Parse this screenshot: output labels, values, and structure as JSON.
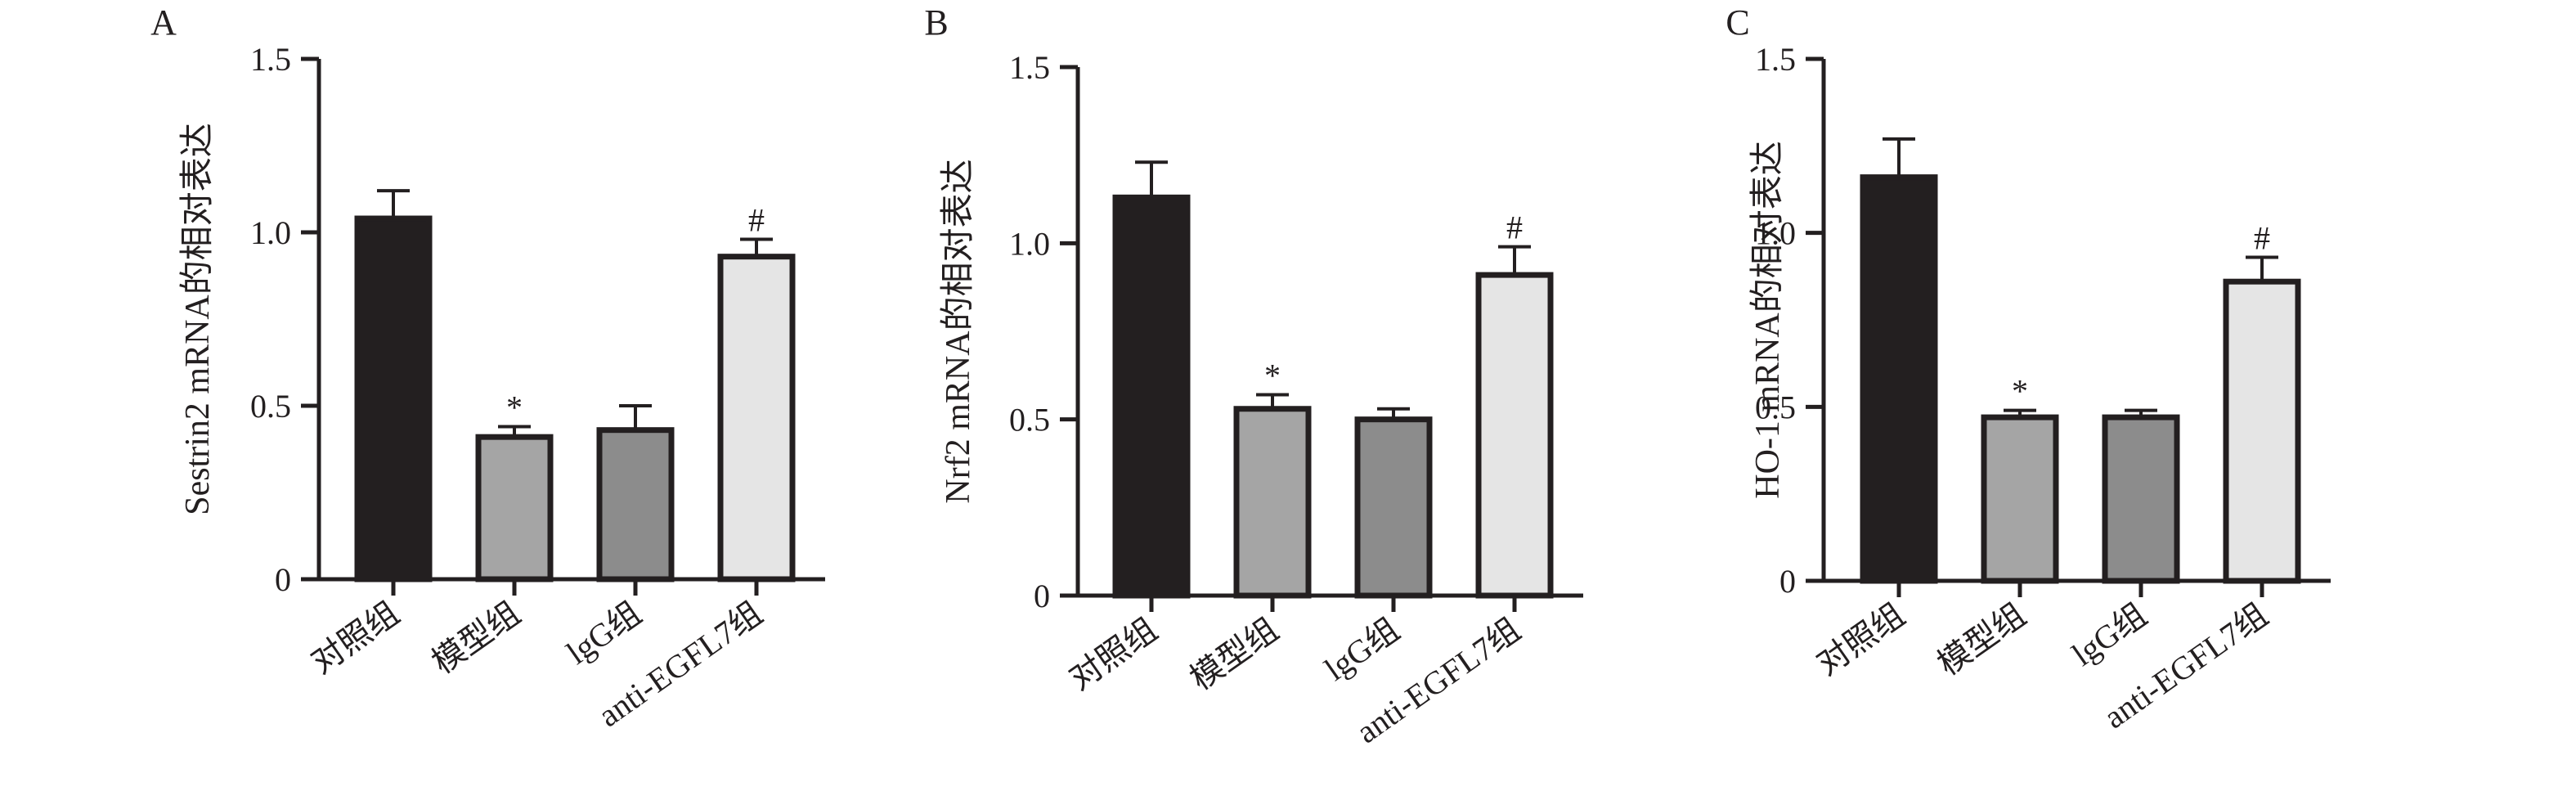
{
  "chart_data": [
    {
      "type": "bar",
      "panel_label": "A",
      "ylabel": "Sestrin2 mRNA的相对表达",
      "categories": [
        "对照组",
        "模型组",
        "lgG组",
        "anti-EGFL7组"
      ],
      "values": [
        1.04,
        0.41,
        0.43,
        0.93
      ],
      "errors": [
        0.08,
        0.03,
        0.07,
        0.05
      ],
      "significance": [
        "",
        "*",
        "",
        "#"
      ],
      "yticks": [
        0,
        0.5,
        1.0,
        1.5
      ],
      "ytick_labels": [
        "0",
        "0.5",
        "1.0",
        "1.5"
      ],
      "ylim": [
        0,
        1.5
      ],
      "grid": false,
      "colors": [
        "#231f20",
        "#a5a5a5",
        "#8c8c8c",
        "#e5e5e5"
      ]
    },
    {
      "type": "bar",
      "panel_label": "B",
      "ylabel": "Nrf2 mRNA的相对表达",
      "categories": [
        "对照组",
        "模型组",
        "lgG组",
        "anti-EGFL7组"
      ],
      "values": [
        1.13,
        0.53,
        0.5,
        0.91
      ],
      "errors": [
        0.1,
        0.04,
        0.03,
        0.08
      ],
      "significance": [
        "",
        "*",
        "",
        "#"
      ],
      "yticks": [
        0,
        0.5,
        1.0,
        1.5
      ],
      "ytick_labels": [
        "0",
        "0.5",
        "1.0",
        "1.5"
      ],
      "ylim": [
        0,
        1.5
      ],
      "grid": false,
      "colors": [
        "#231f20",
        "#a5a5a5",
        "#8c8c8c",
        "#e5e5e5"
      ]
    },
    {
      "type": "bar",
      "panel_label": "C",
      "ylabel": "HO-1 mRNA的相对表达",
      "categories": [
        "对照组",
        "模型组",
        "lgG组",
        "anti-EGFL7组"
      ],
      "values": [
        1.16,
        0.47,
        0.47,
        0.86
      ],
      "errors": [
        0.11,
        0.02,
        0.02,
        0.07
      ],
      "significance": [
        "",
        "*",
        "",
        "#"
      ],
      "yticks": [
        0,
        0.5,
        1.0,
        1.5
      ],
      "ytick_labels": [
        "0",
        "0.5",
        "1.0",
        "1.5"
      ],
      "ylim": [
        0,
        1.5
      ],
      "grid": false,
      "colors": [
        "#231f20",
        "#a5a5a5",
        "#8c8c8c",
        "#e5e5e5"
      ]
    }
  ]
}
